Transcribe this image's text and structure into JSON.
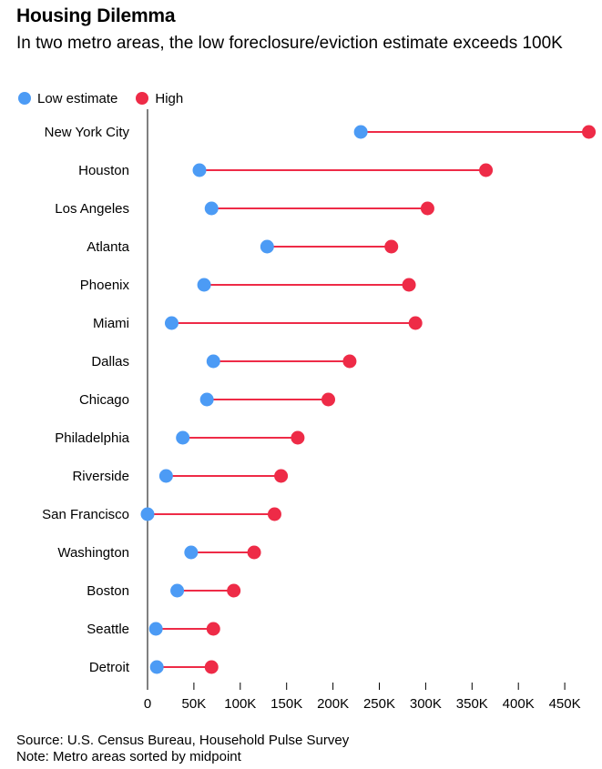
{
  "colors": {
    "low": "#4c9bf5",
    "high": "#ee2b47",
    "connector": "#ee2b47",
    "axis": "#000000"
  },
  "chart_data": {
    "type": "dumbbell",
    "title": "Housing Dilemma",
    "subtitle": "In two metro areas, the low foreclosure/eviction estimate exceeds 100K",
    "legend": [
      {
        "name": "Low estimate",
        "color": "#4c9bf5"
      },
      {
        "name": "High",
        "color": "#ee2b47"
      }
    ],
    "legend_position": "top-left",
    "xlim": [
      0,
      470000
    ],
    "x_ticks": [
      0,
      50000,
      100000,
      150000,
      200000,
      250000,
      300000,
      350000,
      400000,
      450000
    ],
    "x_tick_labels": [
      "0",
      "50K",
      "100K",
      "150K",
      "200K",
      "250K",
      "300K",
      "350K",
      "400K",
      "450K"
    ],
    "categories": [
      "New York City",
      "Houston",
      "Los Angeles",
      "Atlanta",
      "Phoenix",
      "Miami",
      "Dallas",
      "Chicago",
      "Philadelphia",
      "Riverside",
      "San Francisco",
      "Washington",
      "Boston",
      "Seattle",
      "Detroit"
    ],
    "series": [
      {
        "name": "Low estimate",
        "values": [
          230000,
          56000,
          69000,
          129000,
          61000,
          26000,
          71000,
          64000,
          38000,
          20000,
          0,
          47000,
          32000,
          9000,
          10000
        ]
      },
      {
        "name": "High",
        "values": [
          476000,
          365000,
          302000,
          263000,
          282000,
          289000,
          218000,
          195000,
          162000,
          144000,
          137000,
          115000,
          93000,
          71000,
          69000
        ]
      }
    ],
    "grid": false
  },
  "footer": {
    "source": "Source: U.S. Census Bureau, Household Pulse Survey",
    "note": "Note: Metro areas sorted by midpoint"
  }
}
